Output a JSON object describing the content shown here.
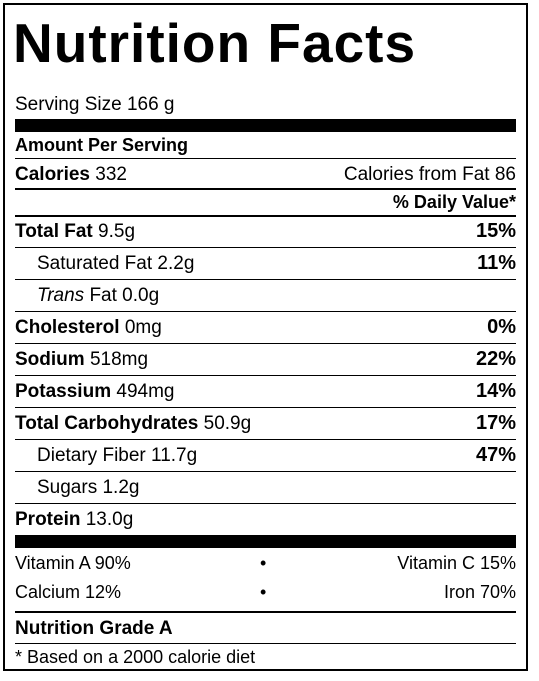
{
  "title": "Nutrition Facts",
  "serving_size": "Serving Size 166 g",
  "amount_per_serving": "Amount Per Serving",
  "calories": {
    "label": "Calories",
    "value": "332",
    "from_fat": "Calories from Fat 86"
  },
  "daily_value_header": "% Daily Value*",
  "nutrients": [
    {
      "label": "Total Fat",
      "amount": "9.5g",
      "dv": "15%"
    },
    {
      "label": "Saturated Fat",
      "amount": "2.2g",
      "dv": "11%"
    },
    {
      "label_prefix": "Trans",
      "label": "Fat",
      "amount": "0.0g",
      "dv": ""
    },
    {
      "label": "Cholesterol",
      "amount": "0mg",
      "dv": "0%"
    },
    {
      "label": "Sodium",
      "amount": "518mg",
      "dv": "22%"
    },
    {
      "label": "Potassium",
      "amount": "494mg",
      "dv": "14%"
    },
    {
      "label": "Total Carbohydrates",
      "amount": "50.9g",
      "dv": "17%"
    },
    {
      "label": "Dietary Fiber",
      "amount": "11.7g",
      "dv": "47%"
    },
    {
      "label": "Sugars",
      "amount": "1.2g",
      "dv": ""
    },
    {
      "label": "Protein",
      "amount": "13.0g",
      "dv": ""
    }
  ],
  "vitamins": {
    "row1_left": "Vitamin A 90%",
    "row1_right": "Vitamin C 15%",
    "row2_left": "Calcium 12%",
    "row2_right": "Iron 70%",
    "separator": "•"
  },
  "grade": "Nutrition Grade A",
  "footnote": "* Based on a 2000 calorie diet"
}
